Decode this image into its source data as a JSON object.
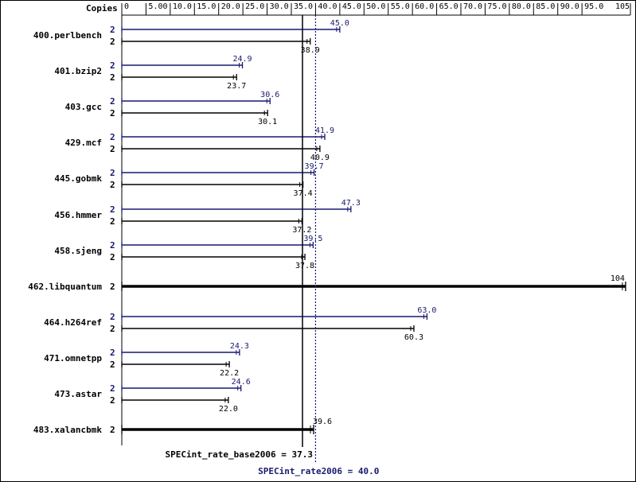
{
  "chart_data": {
    "type": "bar",
    "orientation": "horizontal",
    "header_label": "Copies",
    "xlim": [
      0,
      105
    ],
    "ticks": [
      0,
      5,
      10,
      15,
      20,
      25,
      30,
      35,
      40,
      45,
      50,
      55,
      60,
      65,
      70,
      75,
      80,
      85,
      90,
      95,
      105
    ],
    "tick_labels": [
      "0",
      "5.00",
      "10.0",
      "15.0",
      "20.0",
      "25.0",
      "30.0",
      "35.0",
      "40.0",
      "45.0",
      "50.0",
      "55.0",
      "60.0",
      "65.0",
      "70.0",
      "75.0",
      "80.0",
      "85.0",
      "90.0",
      "95.0",
      "105"
    ],
    "grid": false,
    "colors": {
      "peak": "#191970",
      "base": "#000000",
      "background": "#ffffff"
    },
    "benchmarks": [
      {
        "name": "400.perlbench",
        "copies_peak": "2",
        "copies_base": "2",
        "peak": 45.0,
        "peak_label": "45.0",
        "base": 38.9,
        "base_label": "38.9"
      },
      {
        "name": "401.bzip2",
        "copies_peak": "2",
        "copies_base": "2",
        "peak": 24.9,
        "peak_label": "24.9",
        "base": 23.7,
        "base_label": "23.7"
      },
      {
        "name": "403.gcc",
        "copies_peak": "2",
        "copies_base": "2",
        "peak": 30.6,
        "peak_label": "30.6",
        "base": 30.1,
        "base_label": "30.1"
      },
      {
        "name": "429.mcf",
        "copies_peak": "2",
        "copies_base": "2",
        "peak": 41.9,
        "peak_label": "41.9",
        "base": 40.9,
        "base_label": "40.9"
      },
      {
        "name": "445.gobmk",
        "copies_peak": "2",
        "copies_base": "2",
        "peak": 39.7,
        "peak_label": "39.7",
        "base": 37.4,
        "base_label": "37.4"
      },
      {
        "name": "456.hmmer",
        "copies_peak": "2",
        "copies_base": "2",
        "peak": 47.3,
        "peak_label": "47.3",
        "base": 37.2,
        "base_label": "37.2"
      },
      {
        "name": "458.sjeng",
        "copies_peak": "2",
        "copies_base": "2",
        "peak": 39.5,
        "peak_label": "39.5",
        "base": 37.8,
        "base_label": "37.8"
      },
      {
        "name": "462.libquantum",
        "copies_shared": "2",
        "shared": 104,
        "shared_label": "104"
      },
      {
        "name": "464.h264ref",
        "copies_peak": "2",
        "copies_base": "2",
        "peak": 63.0,
        "peak_label": "63.0",
        "base": 60.3,
        "base_label": "60.3"
      },
      {
        "name": "471.omnetpp",
        "copies_peak": "2",
        "copies_base": "2",
        "peak": 24.3,
        "peak_label": "24.3",
        "base": 22.2,
        "base_label": "22.2"
      },
      {
        "name": "473.astar",
        "copies_peak": "2",
        "copies_base": "2",
        "peak": 24.6,
        "peak_label": "24.6",
        "base": 22.0,
        "base_label": "22.0"
      },
      {
        "name": "483.xalancbmk",
        "copies_shared": "2",
        "shared": 39.6,
        "shared_label": "39.6"
      }
    ],
    "summary": {
      "base_label": "SPECint_rate_base2006 = 37.3",
      "base_value": 37.3,
      "peak_label": "SPECint_rate2006 = 40.0",
      "peak_value": 40.0
    }
  }
}
